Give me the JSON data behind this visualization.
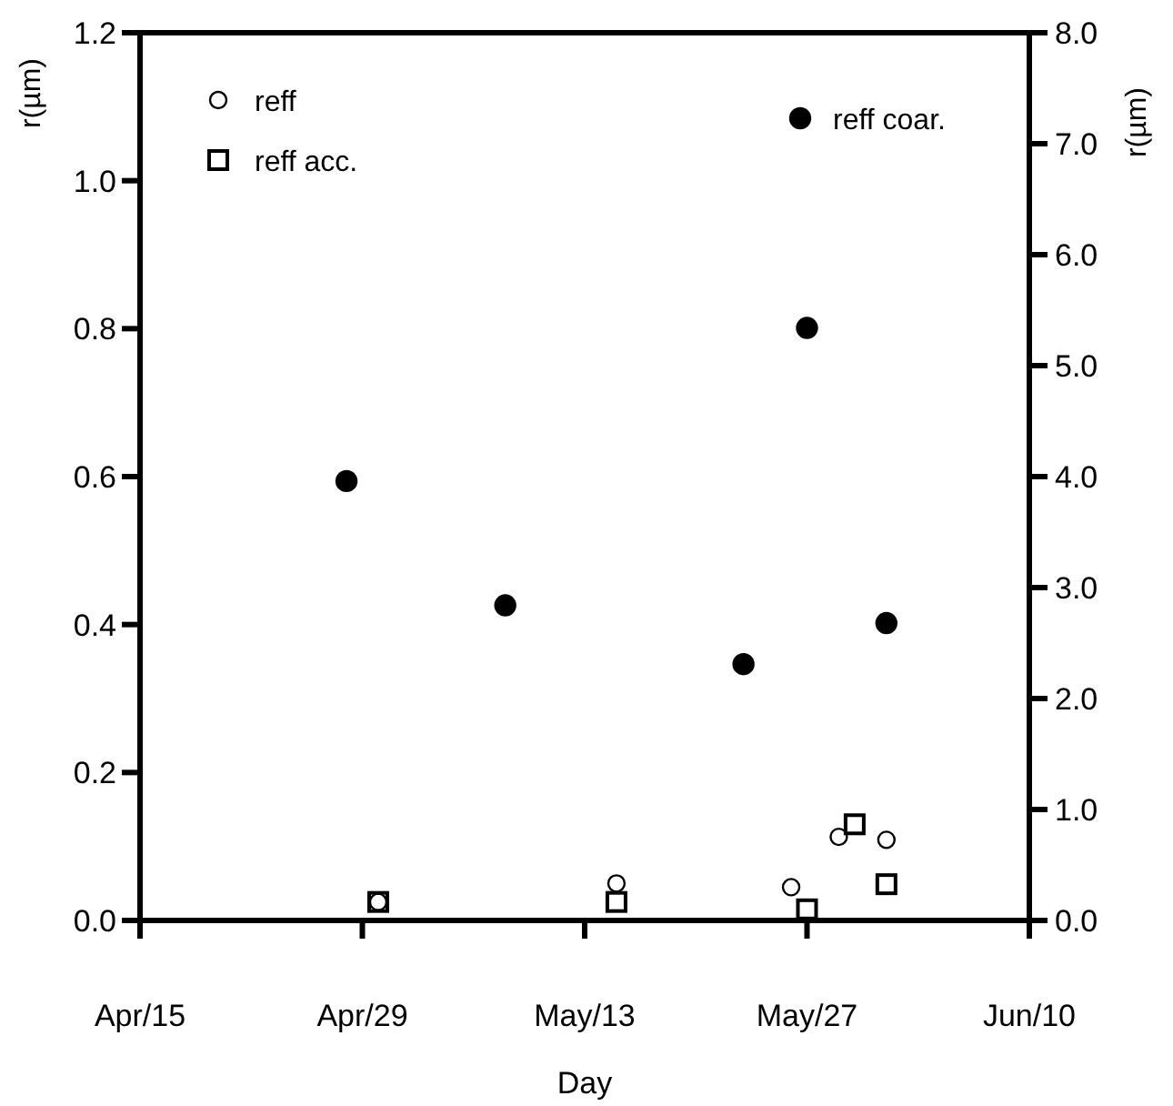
{
  "chart_data": {
    "type": "scatter",
    "xlabel": "Day",
    "ylabel": "r(µm)",
    "y2label": "r(µm)",
    "xlim": [
      "--04-15",
      "--06-10"
    ],
    "xticks": [
      {
        "value": "--04-15",
        "label": "Apr/15"
      },
      {
        "value": "--04-29",
        "label": "Apr/29"
      },
      {
        "value": "--05-13",
        "label": "May/13"
      },
      {
        "value": "--05-27",
        "label": "May/27"
      },
      {
        "value": "--06-10",
        "label": "Jun/10"
      }
    ],
    "ylim": [
      0,
      1.2
    ],
    "yticks": [
      {
        "value": 0,
        "label": "0.0"
      },
      {
        "value": 0.2,
        "label": "0.2"
      },
      {
        "value": 0.4,
        "label": "0.4"
      },
      {
        "value": 0.6,
        "label": "0.6"
      },
      {
        "value": 0.8,
        "label": "0.8"
      },
      {
        "value": 1.0,
        "label": "1.0"
      },
      {
        "value": 1.2,
        "label": "1.2"
      }
    ],
    "y2lim": [
      0,
      8
    ],
    "y2ticks": [
      {
        "value": 0,
        "label": "0.0"
      },
      {
        "value": 1,
        "label": "1.0"
      },
      {
        "value": 2,
        "label": "2.0"
      },
      {
        "value": 3,
        "label": "3.0"
      },
      {
        "value": 4,
        "label": "4.0"
      },
      {
        "value": 5,
        "label": "5.0"
      },
      {
        "value": 6,
        "label": "6.0"
      },
      {
        "value": 7,
        "label": "7.0"
      },
      {
        "value": 8,
        "label": "8.0"
      }
    ],
    "grid": false,
    "legend": "top",
    "series": [
      {
        "name": "reff",
        "color": "#000000",
        "marker": "circle",
        "x": [
          "--04-30",
          "--05-15",
          "--05-26",
          "--05-29",
          "--06-01"
        ],
        "values": [
          0.025,
          0.05,
          0.045,
          0.113,
          0.109
        ]
      },
      {
        "name": "reff acc.",
        "color": "#000000",
        "marker": "square",
        "x": [
          "--04-30",
          "--05-15",
          "--05-27",
          "--05-30",
          "--06-01"
        ],
        "values": [
          0.025,
          0.025,
          0.015,
          0.13,
          0.049
        ]
      },
      {
        "name": "reff coar.",
        "color": "#000000",
        "marker": "circle",
        "axis": "y2",
        "x": [
          "--04-28",
          "--05-08",
          "--05-23",
          "--05-27",
          "--06-01"
        ],
        "values": [
          3.96,
          2.84,
          2.31,
          5.34,
          2.68
        ]
      }
    ]
  }
}
